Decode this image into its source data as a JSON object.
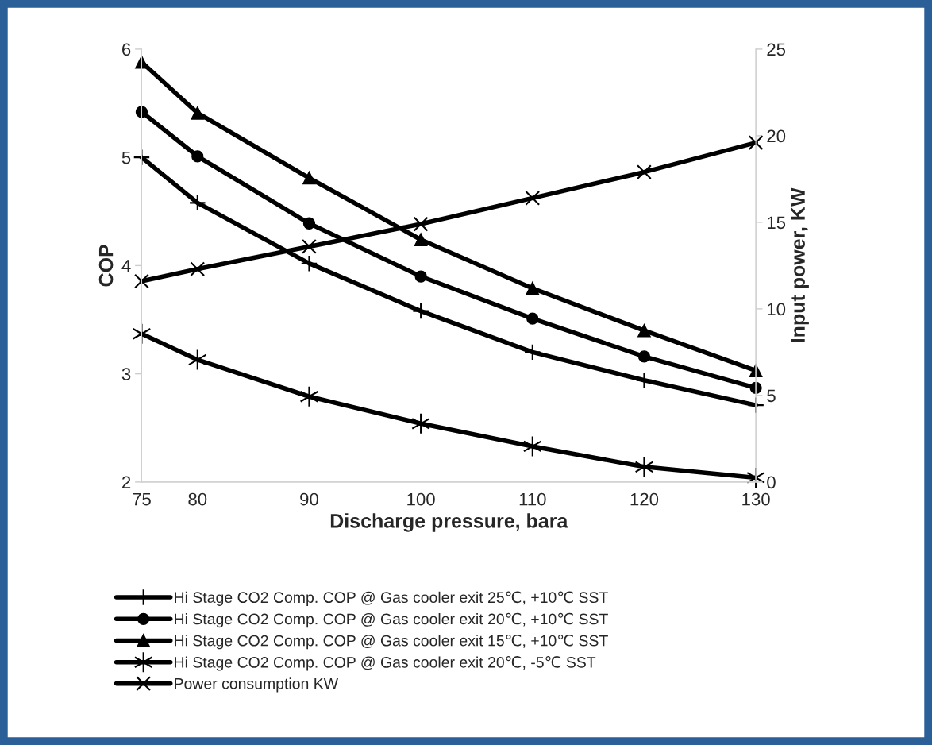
{
  "chart_data": {
    "type": "line",
    "xlabel": "Discharge pressure, bara",
    "ylabel": "COP",
    "y2label": "Input power, KW",
    "x": [
      75,
      80,
      90,
      100,
      110,
      120,
      130
    ],
    "series": [
      {
        "name": "Hi Stage CO2 Comp. COP @ Gas cooler exit 25℃, +10℃ SST",
        "color": "#000000",
        "marker": "plus",
        "values": [
          5.0,
          4.58,
          4.02,
          3.58,
          3.2,
          2.94,
          2.71
        ]
      },
      {
        "name": "Hi Stage CO2 Comp. COP @ Gas cooler exit 20℃, +10℃ SST",
        "color": "#000000",
        "marker": "circle",
        "values": [
          5.42,
          5.01,
          4.39,
          3.9,
          3.51,
          3.16,
          2.87
        ]
      },
      {
        "name": "Hi Stage CO2 Comp. COP @ Gas cooler exit 15℃, +10℃ SST",
        "color": "#000000",
        "marker": "triangle",
        "values": [
          5.88,
          5.41,
          4.81,
          4.24,
          3.79,
          3.4,
          3.03
        ]
      },
      {
        "name": "Hi Stage CO2 Comp. COP @ Gas cooler exit 20℃, -5℃ SST",
        "color": "#000000",
        "marker": "cross",
        "values": [
          3.37,
          3.13,
          2.79,
          2.54,
          2.33,
          2.14,
          2.04
        ]
      },
      {
        "name": "Power consumption KW",
        "color": "#000000",
        "marker": "x",
        "axis": "y2",
        "values": [
          11.6,
          12.3,
          13.6,
          14.9,
          16.4,
          17.9,
          19.6
        ]
      }
    ],
    "xlim": [
      75,
      130
    ],
    "xticks": [
      75,
      80,
      90,
      100,
      110,
      120,
      130
    ],
    "ylim": [
      2,
      6
    ],
    "yticks": [
      2,
      3,
      4,
      5,
      6
    ],
    "y2lim": [
      0,
      25
    ],
    "y2ticks": [
      0,
      5,
      10,
      15,
      20,
      25
    ],
    "grid": false,
    "legend": "bottom",
    "line_style": "solid"
  }
}
